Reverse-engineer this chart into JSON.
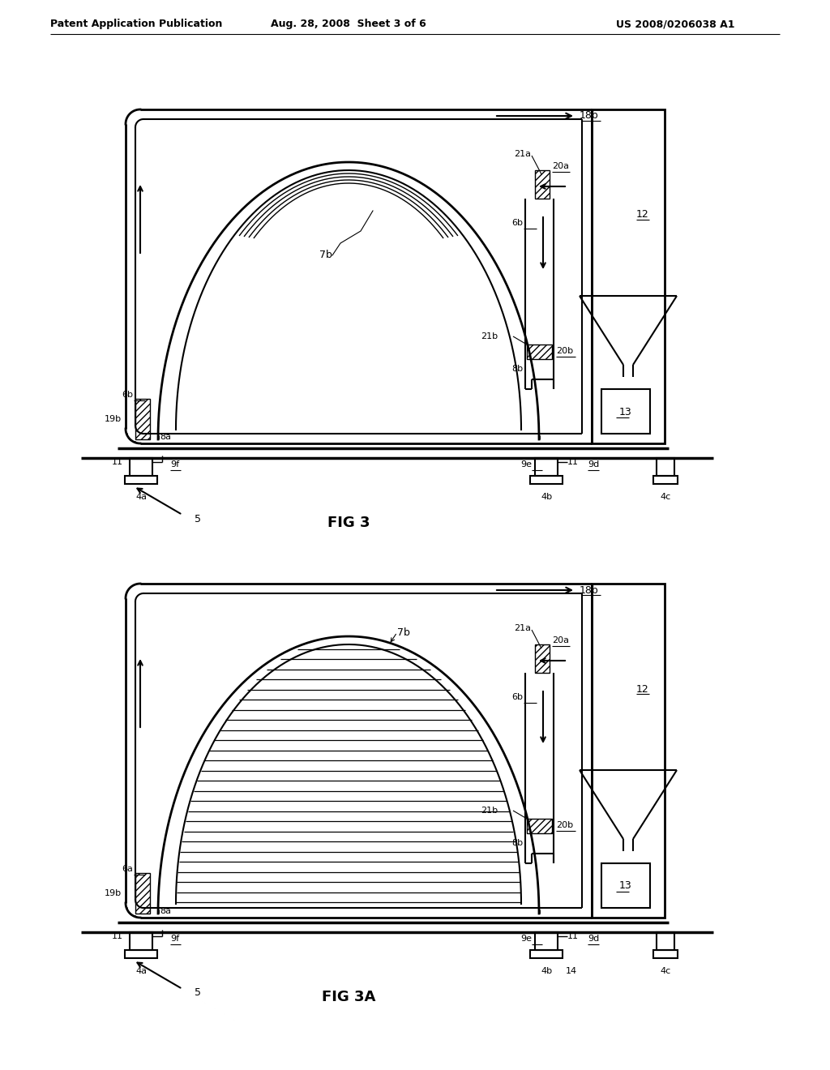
{
  "header_left": "Patent Application Publication",
  "header_mid": "Aug. 28, 2008  Sheet 3 of 6",
  "header_right": "US 2008/0206038 A1",
  "bg_color": "#ffffff",
  "line_color": "#000000"
}
